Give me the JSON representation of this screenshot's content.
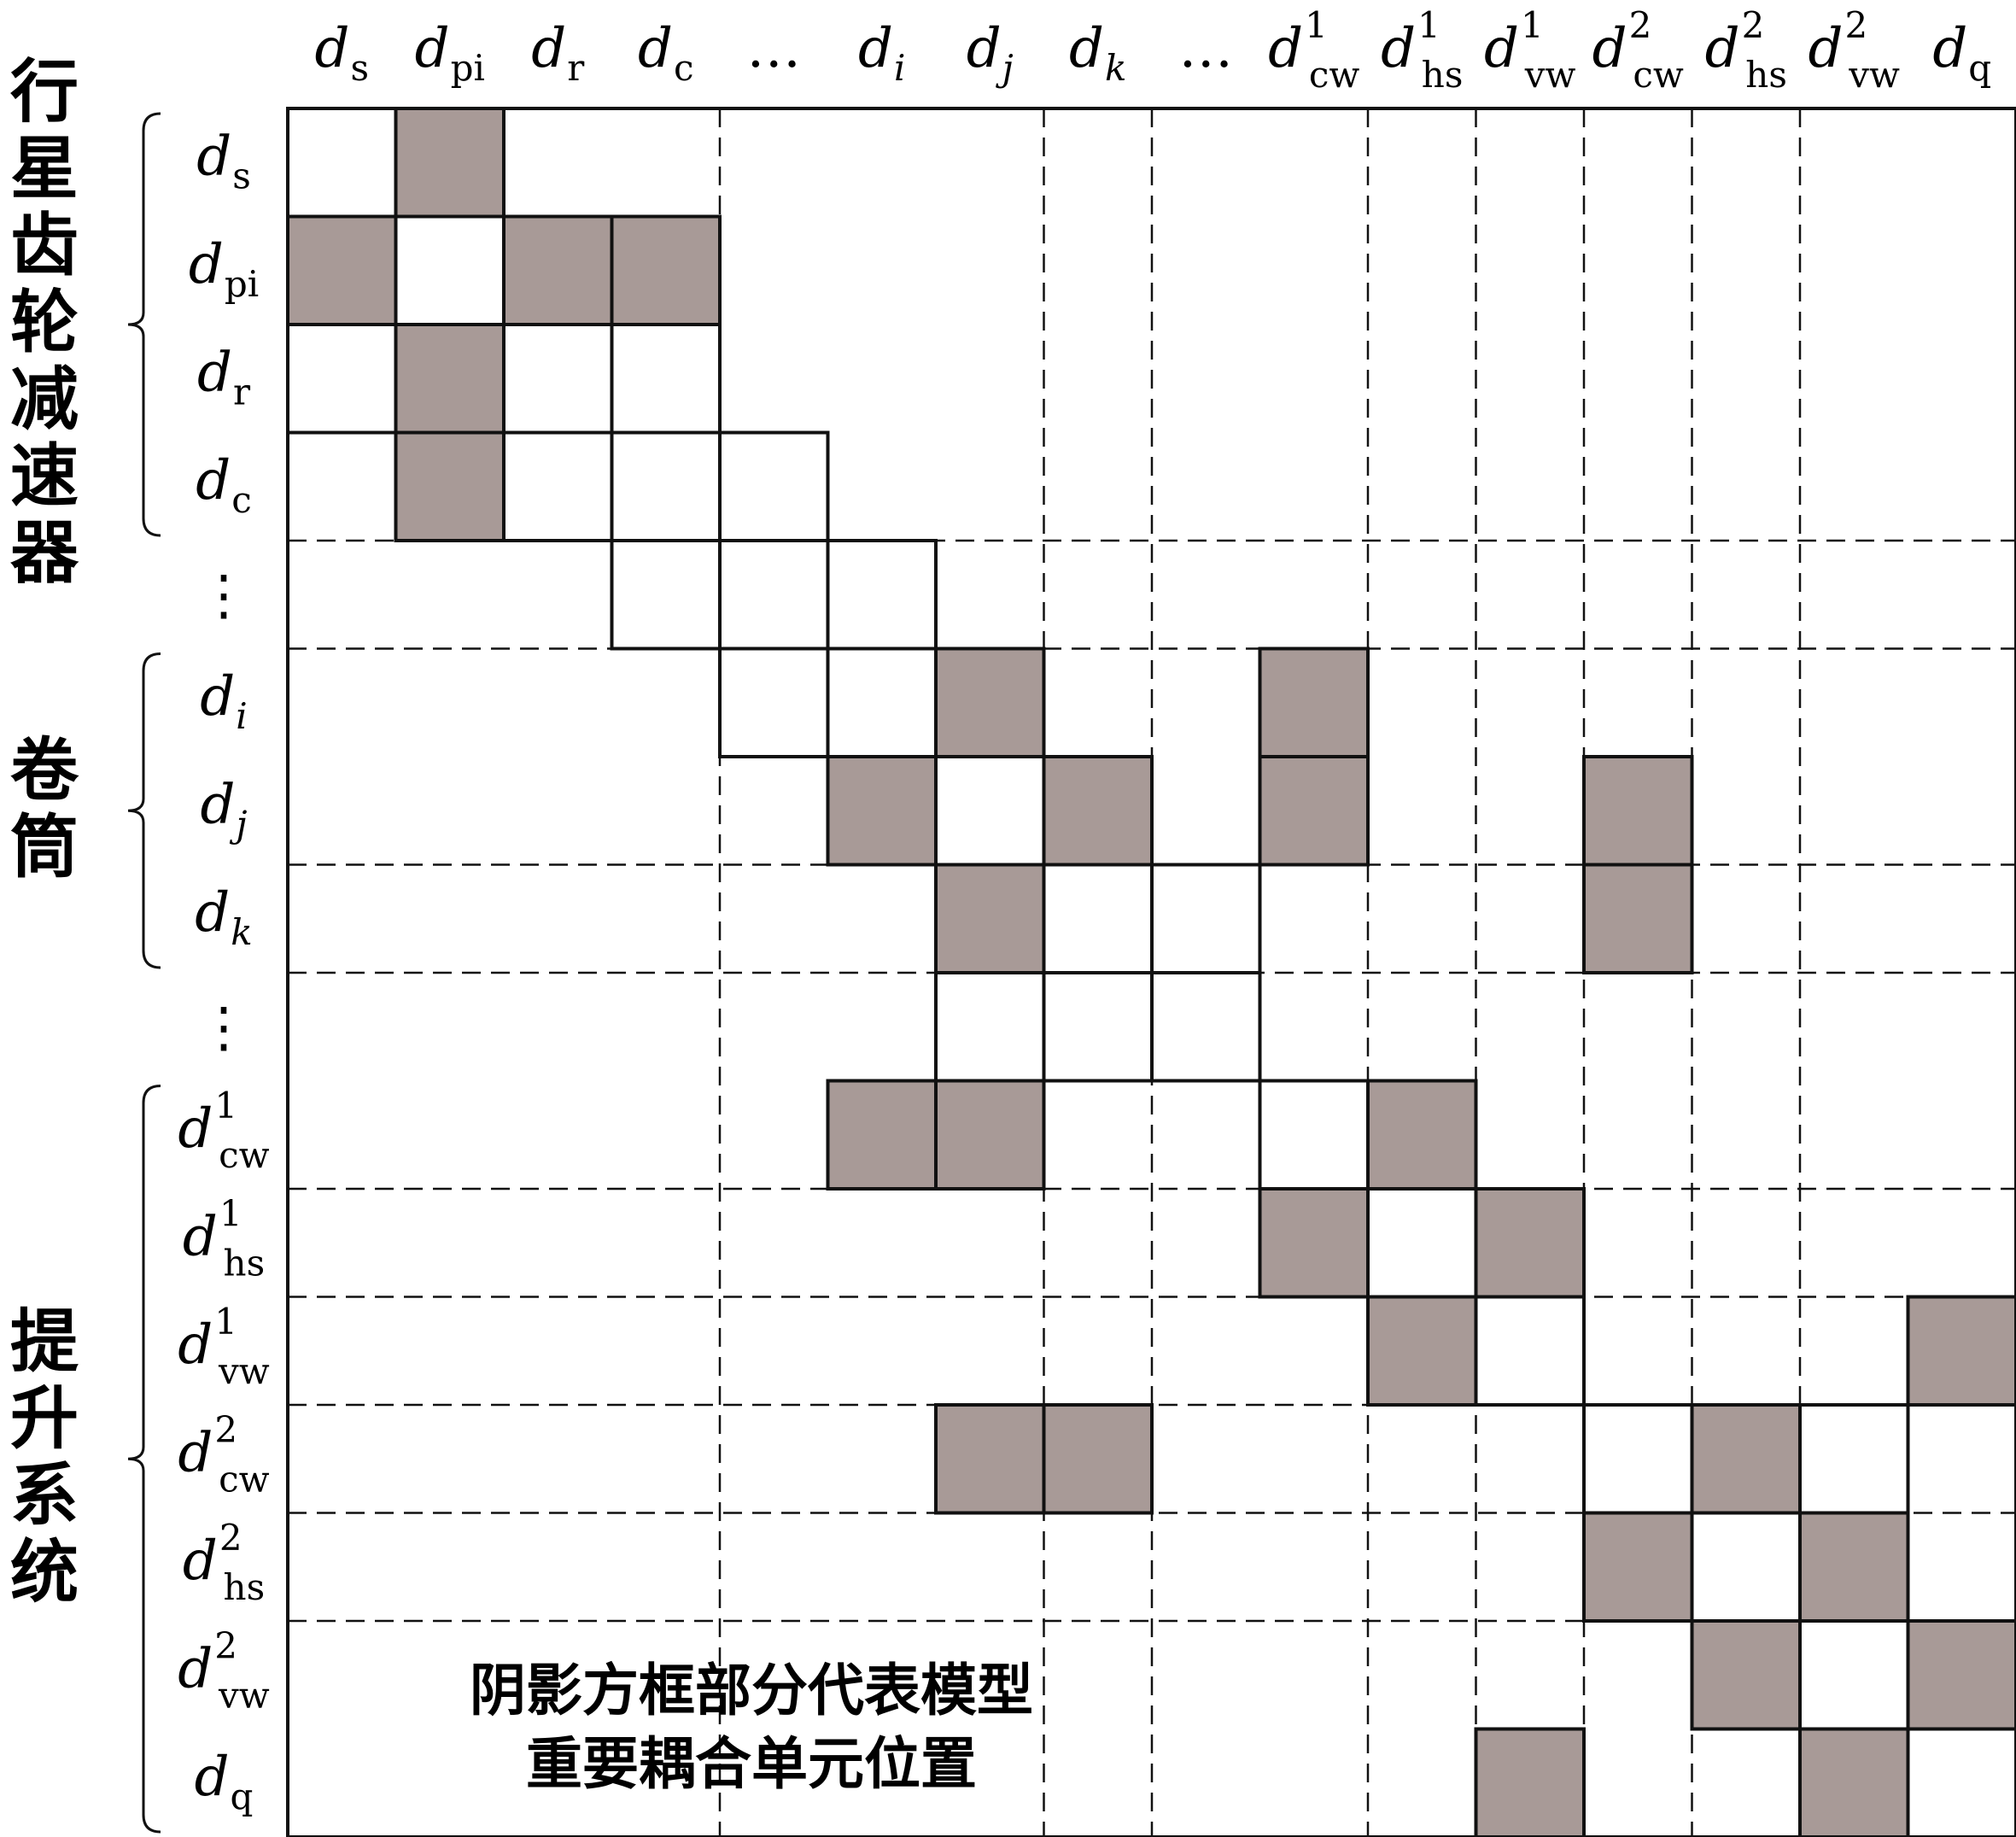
{
  "colors": {
    "shade": "#a89a97",
    "line": "#111111",
    "background": "#ffffff"
  },
  "columns": [
    {
      "base": "d",
      "sub": "s"
    },
    {
      "base": "d",
      "sub": "pi"
    },
    {
      "base": "d",
      "sub": "r"
    },
    {
      "base": "d",
      "sub": "c"
    },
    {
      "ellipsis": "…"
    },
    {
      "base": "d",
      "sub": "i"
    },
    {
      "base": "d",
      "sub": "j"
    },
    {
      "base": "d",
      "sub": "k"
    },
    {
      "ellipsis": "…"
    },
    {
      "base": "d",
      "sub": "cw",
      "sup": "1"
    },
    {
      "base": "d",
      "sub": "hs",
      "sup": "1"
    },
    {
      "base": "d",
      "sub": "vw",
      "sup": "1"
    },
    {
      "base": "d",
      "sub": "cw",
      "sup": "2"
    },
    {
      "base": "d",
      "sub": "hs",
      "sup": "2"
    },
    {
      "base": "d",
      "sub": "vw",
      "sup": "2"
    },
    {
      "base": "d",
      "sub": "q"
    }
  ],
  "rows": [
    {
      "base": "d",
      "sub": "s"
    },
    {
      "base": "d",
      "sub": "pi"
    },
    {
      "base": "d",
      "sub": "r"
    },
    {
      "base": "d",
      "sub": "c"
    },
    {
      "ellipsis": "⋮"
    },
    {
      "base": "d",
      "sub": "i"
    },
    {
      "base": "d",
      "sub": "j"
    },
    {
      "base": "d",
      "sub": "k"
    },
    {
      "ellipsis": "⋮"
    },
    {
      "base": "d",
      "sub": "cw",
      "sup": "1"
    },
    {
      "base": "d",
      "sub": "hs",
      "sup": "1"
    },
    {
      "base": "d",
      "sub": "vw",
      "sup": "1"
    },
    {
      "base": "d",
      "sub": "cw",
      "sup": "2"
    },
    {
      "base": "d",
      "sub": "hs",
      "sup": "2"
    },
    {
      "base": "d",
      "sub": "vw",
      "sup": "2"
    },
    {
      "base": "d",
      "sub": "q"
    }
  ],
  "groups": [
    {
      "label": "行星齿轮减速器",
      "first_row": 0,
      "last_row": 3
    },
    {
      "label": "卷筒",
      "first_row": 5,
      "last_row": 7
    },
    {
      "label": "提升系统",
      "first_row": 9,
      "last_row": 15
    }
  ],
  "shaded_cells": [
    [
      0,
      1
    ],
    [
      1,
      0
    ],
    [
      1,
      2
    ],
    [
      1,
      3
    ],
    [
      2,
      1
    ],
    [
      3,
      1
    ],
    [
      5,
      6
    ],
    [
      5,
      9
    ],
    [
      6,
      5
    ],
    [
      6,
      7
    ],
    [
      6,
      9
    ],
    [
      6,
      12
    ],
    [
      7,
      6
    ],
    [
      7,
      12
    ],
    [
      9,
      5
    ],
    [
      9,
      6
    ],
    [
      9,
      10
    ],
    [
      10,
      9
    ],
    [
      10,
      11
    ],
    [
      11,
      10
    ],
    [
      11,
      15
    ],
    [
      12,
      6
    ],
    [
      12,
      7
    ],
    [
      12,
      13
    ],
    [
      13,
      12
    ],
    [
      13,
      14
    ],
    [
      14,
      13
    ],
    [
      14,
      15
    ],
    [
      15,
      11
    ],
    [
      15,
      14
    ]
  ],
  "outlined_cells": [
    [
      0,
      0
    ],
    [
      1,
      1
    ],
    [
      2,
      0
    ],
    [
      2,
      2
    ],
    [
      2,
      3
    ],
    [
      3,
      2
    ],
    [
      3,
      3
    ],
    [
      3,
      4
    ],
    [
      4,
      3
    ],
    [
      4,
      4
    ],
    [
      4,
      5
    ],
    [
      5,
      4
    ],
    [
      5,
      5
    ],
    [
      6,
      6
    ],
    [
      7,
      7
    ],
    [
      7,
      8
    ],
    [
      8,
      6
    ],
    [
      8,
      7
    ],
    [
      8,
      8
    ],
    [
      9,
      9
    ],
    [
      10,
      10
    ],
    [
      11,
      11
    ],
    [
      12,
      12
    ],
    [
      12,
      14
    ],
    [
      13,
      13
    ],
    [
      14,
      14
    ],
    [
      15,
      15
    ]
  ],
  "dashed_vertical_cols": [
    3,
    6,
    7,
    9,
    10,
    11,
    12,
    13
  ],
  "dashed_horizontal_rows": [
    3,
    4,
    6,
    7,
    9,
    10,
    11,
    12,
    13
  ],
  "note": [
    "阴影方框部分代表模型",
    "重要耦合单元位置"
  ]
}
